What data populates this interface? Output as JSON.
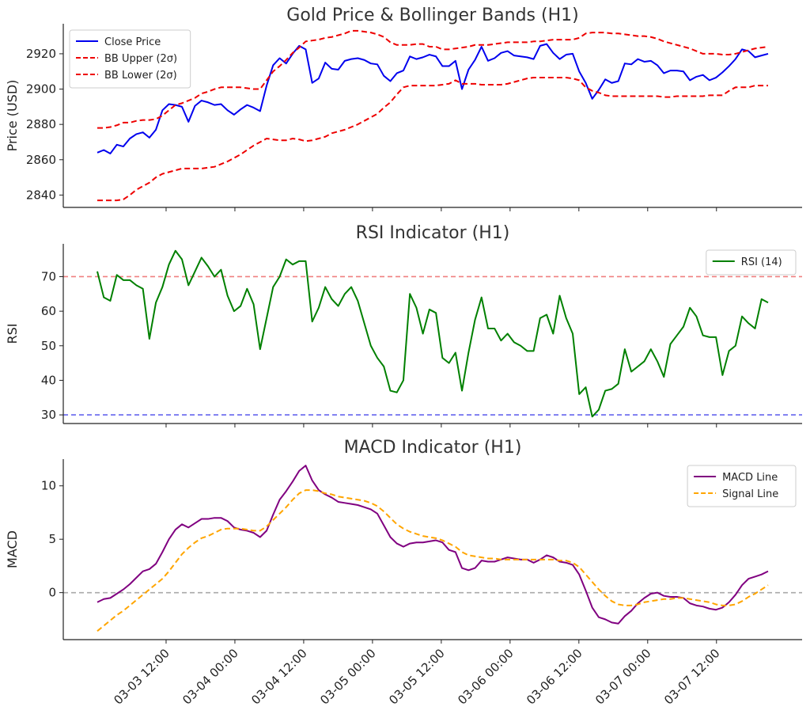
{
  "chart_data": [
    {
      "type": "line",
      "title": "Gold Price & Bollinger Bands (H1)",
      "ylabel": "Price (USD)",
      "xlabel": "",
      "x_start": "03-03 00:00",
      "x_end": "03-07 21:00",
      "x_ticks": [
        "03-03 12:00",
        "03-04 00:00",
        "03-04 12:00",
        "03-05 00:00",
        "03-05 12:00",
        "03-06 00:00",
        "03-06 12:00",
        "03-07 00:00",
        "03-07 12:00"
      ],
      "ylim": [
        2833,
        2937
      ],
      "y_ticks": [
        2840,
        2860,
        2880,
        2900,
        2920
      ],
      "legend_position": "top-left",
      "series": [
        {
          "name": "Close Price",
          "color": "#0000ee",
          "style": "solid",
          "values": [
            2864,
            2865.5,
            2863.5,
            2868.5,
            2867.5,
            2872,
            2874.5,
            2875.5,
            2872.5,
            2877,
            2888,
            2891.5,
            2891,
            2890,
            2881.5,
            2890.5,
            2893.5,
            2892.5,
            2891,
            2891.5,
            2888,
            2885.5,
            2888.5,
            2891,
            2889.5,
            2887.5,
            2902,
            2913.5,
            2917.5,
            2914.5,
            2920,
            2924.5,
            2922.5,
            2903.5,
            2906,
            2915,
            2911.5,
            2911,
            2916,
            2917,
            2917.5,
            2916.5,
            2914.5,
            2914,
            2907.5,
            2904.5,
            2909,
            2910.5,
            2918.5,
            2917,
            2918,
            2919.5,
            2918.5,
            2913,
            2913,
            2916,
            2900,
            2911,
            2916.5,
            2924,
            2916,
            2917.5,
            2920.5,
            2921.5,
            2919,
            2918.5,
            2918,
            2917,
            2924.5,
            2925.5,
            2920.5,
            2917,
            2919.5,
            2920,
            2910,
            2903.5,
            2894.5,
            2899.5,
            2905.5,
            2903.5,
            2904.5,
            2914.5,
            2914,
            2917,
            2915.5,
            2916,
            2913.5,
            2909,
            2910.5,
            2910.5,
            2910,
            2905,
            2907,
            2908,
            2905,
            2906.5,
            2909.5,
            2913,
            2917,
            2922.5,
            2921.5,
            2918,
            2919,
            2920
          ]
        },
        {
          "name": "BB Upper (2σ)",
          "color": "#ee0000",
          "style": "dashed",
          "values": [
            2878,
            2878,
            2878.5,
            2879.5,
            2881,
            2881,
            2882,
            2882.5,
            2882.5,
            2883,
            2885,
            2888,
            2891,
            2892,
            2893.5,
            2895,
            2897.5,
            2898.5,
            2900,
            2901,
            2901,
            2901,
            2901,
            2900.5,
            2900,
            2900,
            2905,
            2910,
            2913,
            2916.5,
            2920.5,
            2923.5,
            2927,
            2927.5,
            2928,
            2929,
            2929.5,
            2930.5,
            2931.5,
            2933,
            2933,
            2932.5,
            2932,
            2931,
            2929.5,
            2926.5,
            2925,
            2925,
            2925,
            2925.5,
            2925.5,
            2924,
            2924,
            2922.5,
            2922.5,
            2923,
            2923.5,
            2924,
            2925,
            2925,
            2925,
            2925.5,
            2926,
            2926.5,
            2926.5,
            2926.5,
            2926.5,
            2927,
            2927,
            2927.5,
            2928,
            2928,
            2928,
            2928,
            2929,
            2931.5,
            2932,
            2932,
            2932,
            2931.5,
            2931.5,
            2931,
            2930.5,
            2930,
            2930,
            2929.5,
            2928.5,
            2927,
            2926,
            2925,
            2924,
            2923,
            2921.5,
            2920,
            2920,
            2920,
            2919.5,
            2919.5,
            2920,
            2921,
            2922,
            2923,
            2923.5,
            2924
          ]
        },
        {
          "name": "BB Lower (2σ)",
          "color": "#ee0000",
          "style": "dashed",
          "values": [
            2837,
            2837,
            2837,
            2837,
            2837.5,
            2840,
            2843,
            2845,
            2847,
            2850,
            2852,
            2853,
            2854,
            2855,
            2855,
            2855,
            2855,
            2855.5,
            2856,
            2857.5,
            2859,
            2861,
            2863,
            2865.5,
            2868,
            2870,
            2872,
            2871.5,
            2871,
            2871,
            2872,
            2871.5,
            2870.5,
            2871,
            2872,
            2873,
            2875,
            2876,
            2877,
            2878.5,
            2880,
            2882,
            2884,
            2886,
            2889.5,
            2892.5,
            2897,
            2901,
            2902,
            2902,
            2902,
            2902,
            2902,
            2902.5,
            2903,
            2905,
            2903,
            2903,
            2903,
            2902.5,
            2902.5,
            2902.5,
            2902.5,
            2903,
            2904,
            2905,
            2906,
            2906.5,
            2906.5,
            2906.5,
            2906.5,
            2906.5,
            2906.5,
            2906,
            2905,
            2901,
            2899,
            2898,
            2896.5,
            2896,
            2896,
            2896,
            2896,
            2896,
            2896,
            2896,
            2896,
            2895.5,
            2895.5,
            2896,
            2896,
            2896,
            2896,
            2896,
            2896.5,
            2896.5,
            2896.5,
            2899,
            2901,
            2901,
            2901,
            2902,
            2902,
            2902
          ]
        }
      ]
    },
    {
      "type": "line",
      "title": "RSI Indicator (H1)",
      "ylabel": "RSI",
      "xlabel": "",
      "ylim": [
        27.5,
        79.5
      ],
      "y_ticks": [
        30,
        40,
        50,
        60,
        70
      ],
      "legend_position": "top-right",
      "reference_lines": [
        {
          "value": 70,
          "color": "#f08080"
        },
        {
          "value": 30,
          "color": "#6666ee"
        }
      ],
      "series": [
        {
          "name": "RSI (14)",
          "color": "#008000",
          "style": "solid",
          "values": [
            71.5,
            64,
            63,
            70.5,
            69,
            69,
            67.5,
            66.5,
            52,
            62.5,
            67,
            73.5,
            77.5,
            75,
            67.5,
            71.5,
            75.5,
            73,
            70,
            72,
            64.5,
            60,
            61.5,
            66.5,
            62,
            49,
            58,
            67,
            70,
            75,
            73.5,
            74.5,
            74.5,
            57,
            61,
            67,
            63.5,
            61.5,
            65,
            67,
            63,
            56.5,
            50,
            46.5,
            44,
            37,
            36.5,
            40,
            65,
            61,
            53.5,
            60.5,
            59.5,
            46.5,
            45,
            48,
            37,
            48,
            57.5,
            64,
            55,
            55,
            51.5,
            53.5,
            51,
            50,
            48.5,
            48.5,
            58,
            59,
            53.5,
            64.5,
            58,
            53.5,
            36,
            38,
            29.5,
            31.5,
            37,
            37.5,
            39,
            49,
            42.5,
            44,
            45.5,
            49,
            45.5,
            41,
            50.5,
            53,
            55.5,
            61,
            58.5,
            53,
            52.5,
            52.5,
            41.5,
            48.5,
            50,
            58.5,
            56.5,
            55,
            63.5,
            62.5
          ]
        }
      ]
    },
    {
      "type": "line",
      "title": "MACD Indicator (H1)",
      "ylabel": "MACD",
      "xlabel": "",
      "ylim": [
        -4.4,
        12.5
      ],
      "y_ticks": [
        0,
        5,
        10
      ],
      "legend_position": "top-right",
      "reference_lines": [
        {
          "value": 0,
          "color": "#aaaaaa"
        }
      ],
      "series": [
        {
          "name": "MACD Line",
          "color": "#800080",
          "style": "solid",
          "values": [
            -0.9,
            -0.6,
            -0.5,
            -0.1,
            0.3,
            0.8,
            1.4,
            2,
            2.2,
            2.7,
            3.8,
            5,
            5.9,
            6.4,
            6.1,
            6.5,
            6.9,
            6.9,
            7,
            7,
            6.7,
            6.1,
            5.9,
            5.8,
            5.6,
            5.2,
            5.8,
            7.3,
            8.7,
            9.5,
            10.4,
            11.4,
            11.9,
            10.5,
            9.6,
            9.2,
            8.9,
            8.5,
            8.4,
            8.3,
            8.2,
            8,
            7.8,
            7.4,
            6.3,
            5.2,
            4.6,
            4.3,
            4.6,
            4.7,
            4.7,
            4.8,
            4.9,
            4.7,
            4,
            3.8,
            2.3,
            2.1,
            2.3,
            3,
            2.9,
            2.9,
            3.1,
            3.3,
            3.2,
            3.1,
            3.1,
            2.8,
            3.1,
            3.5,
            3.3,
            2.9,
            2.8,
            2.6,
            1.7,
            0.2,
            -1.4,
            -2.3,
            -2.5,
            -2.8,
            -2.9,
            -2.2,
            -1.7,
            -1,
            -0.5,
            -0.1,
            0,
            -0.3,
            -0.4,
            -0.4,
            -0.5,
            -1,
            -1.2,
            -1.3,
            -1.5,
            -1.6,
            -1.4,
            -0.9,
            -0.2,
            0.7,
            1.3,
            1.5,
            1.7,
            2
          ]
        },
        {
          "name": "Signal Line",
          "color": "#ffa500",
          "style": "dashed",
          "values": [
            -3.6,
            -3.1,
            -2.6,
            -2.1,
            -1.7,
            -1.2,
            -0.7,
            -0.2,
            0.3,
            0.8,
            1.3,
            2,
            2.8,
            3.6,
            4.2,
            4.7,
            5.1,
            5.3,
            5.6,
            5.9,
            6,
            6,
            6,
            5.9,
            5.8,
            5.8,
            6.2,
            6.8,
            7.4,
            8,
            8.7,
            9.3,
            9.6,
            9.6,
            9.5,
            9.3,
            9.2,
            9,
            8.9,
            8.8,
            8.7,
            8.6,
            8.4,
            8.1,
            7.6,
            7,
            6.4,
            6,
            5.7,
            5.5,
            5.3,
            5.2,
            5.1,
            4.9,
            4.6,
            4.3,
            3.8,
            3.5,
            3.4,
            3.3,
            3.2,
            3.2,
            3.1,
            3.1,
            3.1,
            3.1,
            3.1,
            3.1,
            3.1,
            3.1,
            3.1,
            3,
            3,
            2.8,
            2.4,
            1.7,
            1,
            0.3,
            -0.3,
            -0.8,
            -1.1,
            -1.2,
            -1.2,
            -1.1,
            -0.9,
            -0.8,
            -0.7,
            -0.6,
            -0.6,
            -0.5,
            -0.5,
            -0.6,
            -0.7,
            -0.8,
            -0.9,
            -1.1,
            -1.2,
            -1.2,
            -1.1,
            -0.8,
            -0.4,
            -0.1,
            0.3,
            0.7
          ]
        }
      ]
    }
  ]
}
